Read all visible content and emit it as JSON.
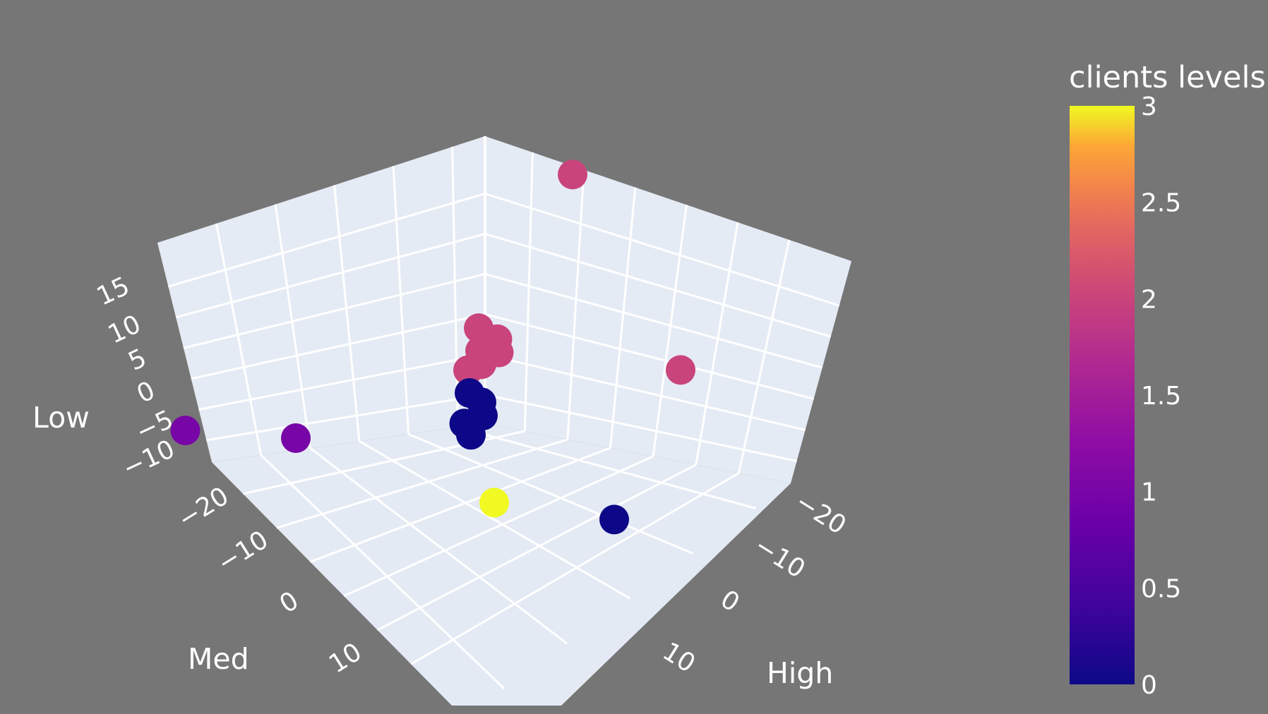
{
  "chart_data": {
    "type": "scatter3d",
    "axes": {
      "x": {
        "title": "Med",
        "ticks": [
          "−20",
          "−10",
          "0",
          "10"
        ]
      },
      "y": {
        "title": "High",
        "ticks": [
          "−20",
          "−10",
          "0",
          "10"
        ]
      },
      "z": {
        "title": "Low",
        "ticks": [
          "−10",
          "−5",
          "0",
          "5",
          "10",
          "15"
        ]
      }
    },
    "colorbar": {
      "title": "clients levels",
      "range": [
        0,
        3
      ],
      "ticks": [
        "0",
        "0.5",
        "1",
        "1.5",
        "2",
        "2.5",
        "3"
      ],
      "colorscale": "plasma"
    },
    "points": [
      {
        "x": -2,
        "y": -22,
        "z": 16,
        "level": 2
      },
      {
        "x": 22,
        "y": -12,
        "z": 2,
        "level": 2
      },
      {
        "x": -1,
        "y": -3,
        "z": 4,
        "level": 2
      },
      {
        "x": 1,
        "y": -4,
        "z": 3,
        "level": 2
      },
      {
        "x": 0,
        "y": -2,
        "z": 2,
        "level": 2
      },
      {
        "x": 1,
        "y": -1,
        "z": 1,
        "level": 2
      },
      {
        "x": -1,
        "y": -1,
        "z": 0,
        "level": 2
      },
      {
        "x": 2,
        "y": -3,
        "z": 2,
        "level": 2
      },
      {
        "x": 0,
        "y": 0,
        "z": -2,
        "level": 0
      },
      {
        "x": 1,
        "y": -1,
        "z": -3,
        "level": 0
      },
      {
        "x": 2,
        "y": 0,
        "z": -4,
        "level": 0
      },
      {
        "x": 0,
        "y": 1,
        "z": -5,
        "level": 0
      },
      {
        "x": 1,
        "y": 1,
        "z": -6,
        "level": 0
      },
      {
        "x": -25,
        "y": 22,
        "z": -6,
        "level": 1
      },
      {
        "x": -18,
        "y": 10,
        "z": -8,
        "level": 1
      },
      {
        "x": 10,
        "y": 8,
        "z": -10,
        "level": 3
      },
      {
        "x": 20,
        "y": -2,
        "z": -12,
        "level": 0
      }
    ]
  }
}
